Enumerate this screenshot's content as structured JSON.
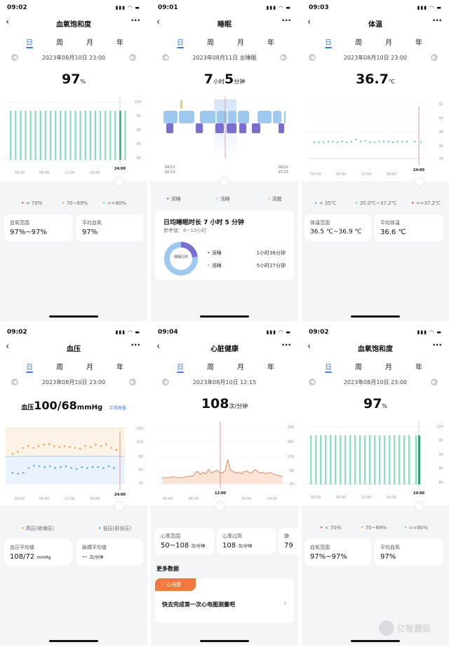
{
  "status_icons": "▮▮▮ ◠ ▬",
  "spo2_1": {
    "time": "09:02",
    "title": "血氧饱和度",
    "tabs": [
      "日",
      "周",
      "月",
      "年"
    ],
    "date": "2023年08月10日  23:00",
    "value": "97",
    "unit": "%",
    "y_ticks": [
      "100",
      "95",
      "90",
      "85",
      "80"
    ],
    "x_ticks": [
      "00:00",
      "06:00",
      "12:00",
      "18:00",
      "24:00"
    ],
    "legend": [
      "< 70%",
      "70~89%",
      ">=90%"
    ],
    "card1_label": "血氧范围",
    "card1_value": "97%~97%",
    "card2_label": "平均血氧",
    "card2_value": "97%",
    "colors": {
      "bar": "#8fdcc1",
      "bar_dark": "#2aa06d",
      "low": "#e8574a",
      "mid": "#f4a44c",
      "high": "#6fd4b0"
    }
  },
  "sleep": {
    "time": "09:01",
    "title": "睡眠",
    "tabs": [
      "日",
      "周",
      "月",
      "年"
    ],
    "date": "2023年08月11日  总睡眠",
    "h": "7",
    "h_unit": "小时",
    "m": "5",
    "m_unit": "分钟",
    "start_date": "08/12",
    "start_time": "00:13",
    "end_date": "08/12",
    "end_time": "07:23",
    "legend": [
      "深睡",
      "浅睡",
      "清醒"
    ],
    "summary_title": "日均睡眠时长 7 小时 5 分钟",
    "reference": "参考值：6~10小时",
    "donut_label": "睡眠比例",
    "deep_label": "深睡",
    "deep_value": "1小时38分钟",
    "light_label": "浅睡",
    "light_value": "5小时27分钟",
    "deep_fraction": 0.23,
    "colors": {
      "deep": "#7a6fd1",
      "light": "#9dc8ef",
      "awake": "#f5c46a"
    }
  },
  "temp": {
    "time": "09:03",
    "title": "体温",
    "tabs": [
      "日",
      "周",
      "月",
      "年"
    ],
    "date": "2023年08月10日  23:00",
    "value": "36.7",
    "unit": "℃",
    "y_ticks": [
      "42",
      "40",
      "38",
      "36",
      "34"
    ],
    "x_ticks": [
      "00:00",
      "06:00",
      "12:00",
      "18:00",
      "24:00"
    ],
    "legend": [
      "< 35℃",
      "35.0℃~37.2℃",
      ">=37.2℃"
    ],
    "card1_label": "体温范围",
    "card1_value": "36.5 ℃~36.9 ℃",
    "card2_label": "平均体温",
    "card2_value": "36.6 ℃",
    "colors": {
      "dot": "#5fcca5",
      "low": "#5aa8f0",
      "mid": "#6fd4b0",
      "high": "#e8574a"
    }
  },
  "bp": {
    "time": "09:02",
    "title": "血压",
    "tabs": [
      "日",
      "周",
      "月",
      "年"
    ],
    "date": "2023年08月10日  23:00",
    "prefix": "血压",
    "value": "100/68",
    "unit": "mmHg",
    "badge": "正常高值",
    "y_ticks": [
      "150",
      "120",
      "90",
      "60",
      "30"
    ],
    "x_ticks": [
      "00:00",
      "06:00",
      "12:00",
      "18:00",
      "24:00"
    ],
    "legend": [
      "高压(收缩压)",
      "低压(舒张压)"
    ],
    "card1_label": "血压平均值",
    "card1_value": "108/72",
    "card1_unit": "mmHg",
    "card2_label": "脉搏平均值",
    "card2_value": "--",
    "card2_unit": "次/分钟",
    "colors": {
      "sys": "#f4a44c",
      "dia": "#5aa8f0"
    }
  },
  "heart": {
    "time": "09:04",
    "title": "心脏健康",
    "tabs": [
      "日",
      "周",
      "月",
      "年"
    ],
    "date": "2023年08月10日  12:15",
    "value": "108",
    "unit": "次/分钟",
    "y_ticks": [
      "200",
      "160",
      "120",
      "80",
      "40"
    ],
    "x_ticks": [
      "00:00",
      "06:00",
      "12:00",
      "18:00",
      "24:00"
    ],
    "card1_label": "心率范围",
    "card1_value": "50~108",
    "card1_unit": "次/分钟",
    "card2_label": "心率过高",
    "card2_value": "108",
    "card2_unit": "次/分钟",
    "card3_label": "静",
    "card3_value": "79",
    "more_title": "更多数据",
    "ecg_tag": "心电图",
    "ecg_text": "快去完成第一次心电图测量吧",
    "colors": {
      "line": "#e0713e",
      "fill": "#fbe3d5",
      "tag": "#f2793d"
    }
  },
  "spo2_2": {
    "time": "09:02",
    "title": "血氧饱和度",
    "tabs": [
      "日",
      "周",
      "月",
      "年"
    ],
    "date": "2023年08月10日  23:00",
    "value": "97",
    "unit": "%",
    "y_ticks": [
      "100",
      "95",
      "90",
      "85",
      "80"
    ],
    "x_ticks": [
      "00:00",
      "06:00",
      "12:00",
      "18:00",
      "24:00"
    ],
    "legend": [
      "< 70%",
      "70~89%",
      ">=90%"
    ],
    "card1_label": "血氧范围",
    "card1_value": "97%~97%",
    "card2_label": "平均血氧",
    "card2_value": "97%",
    "colors": {
      "bar": "#8fdcc1",
      "bar_dark": "#2aa06d",
      "low": "#e8574a",
      "mid": "#f4a44c",
      "high": "#6fd4b0"
    }
  },
  "watermark": "亿智蘑菇"
}
